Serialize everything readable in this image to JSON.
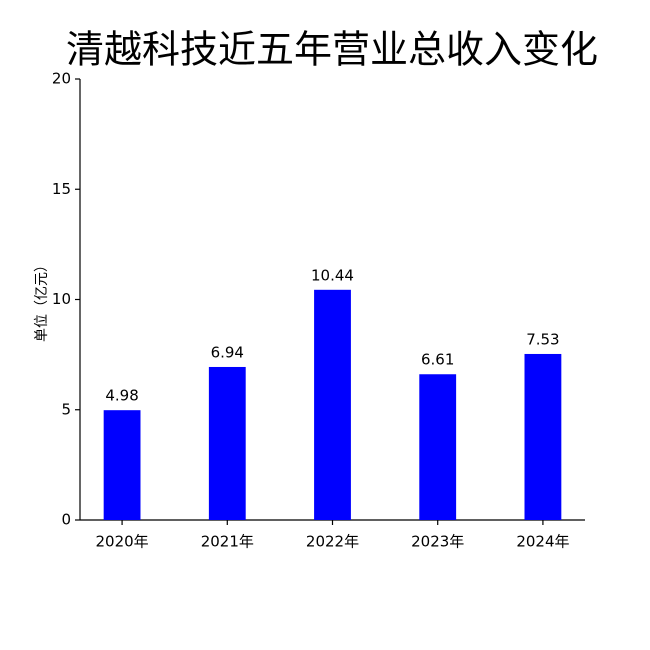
{
  "chart_data": {
    "type": "bar",
    "title": "清越科技近五年营业总收入变化",
    "y_label": "单位（亿元）",
    "categories": [
      "2020年",
      "2021年",
      "2022年",
      "2023年",
      "2024年"
    ],
    "values": [
      4.98,
      6.94,
      10.44,
      6.61,
      7.53
    ],
    "color": "#0000ff",
    "ylim": [
      0,
      20
    ],
    "yticks": [
      0,
      5,
      10,
      15,
      20
    ],
    "grid": false
  }
}
